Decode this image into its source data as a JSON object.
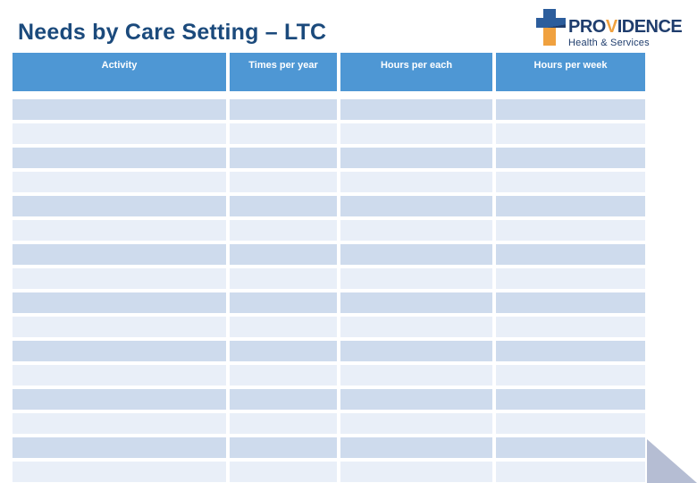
{
  "slide": {
    "title": "Needs by Care Setting – LTC"
  },
  "logo": {
    "name_pre": "PRO",
    "name_v": "V",
    "name_post": "IDENCE",
    "tagline": "Health & Services",
    "cross_icon": "providence-cross"
  },
  "table": {
    "columns": [
      {
        "label": "Activity"
      },
      {
        "label": "Times per year"
      },
      {
        "label": "Hours per each"
      },
      {
        "label": "Hours per week"
      }
    ],
    "row_count": 16,
    "cells_empty": true
  },
  "colors": {
    "title_navy": "#1b4a7c",
    "logo_navy": "#1f3d6d",
    "logo_orange": "#f0a13f",
    "cross_blue": "#2c5d9c",
    "header_blue": "#4e97d4",
    "row_dark": "#cedbed",
    "row_light": "#e9eff8",
    "triangle_gray": "#b5bdd3"
  }
}
